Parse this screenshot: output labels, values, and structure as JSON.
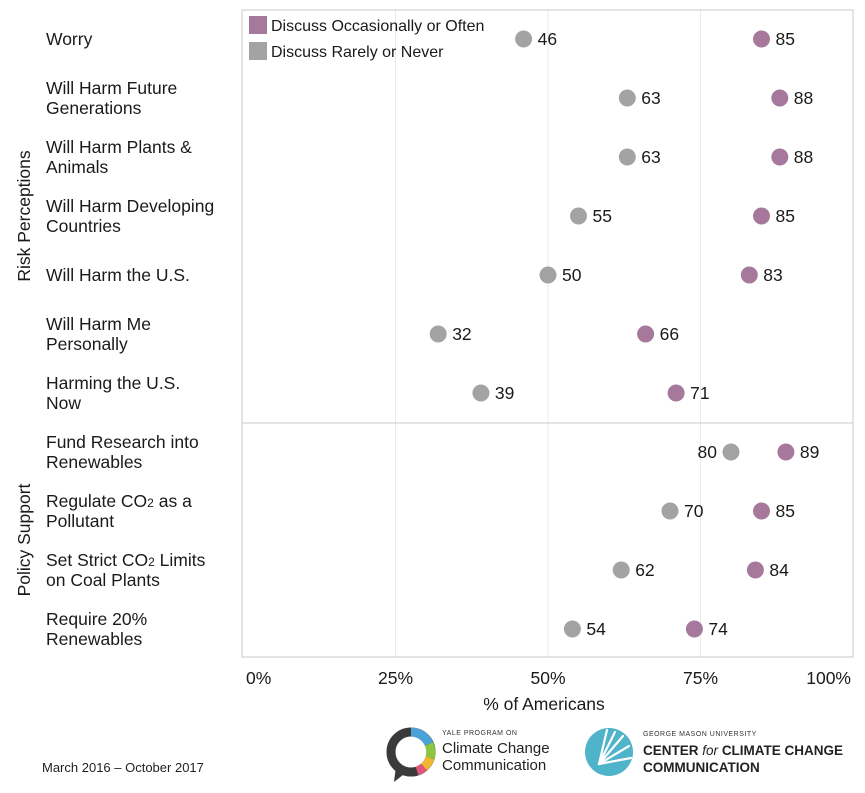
{
  "chart_data": {
    "type": "dot",
    "xlabel": "% of Americans",
    "xlim": [
      0,
      100
    ],
    "x_ticks": [
      "0%",
      "25%",
      "50%",
      "75%",
      "100%"
    ],
    "x_tick_values": [
      0,
      25,
      50,
      75,
      100
    ],
    "grid": true,
    "legend_position": "top-left",
    "colors": {
      "occasionally": "#a6789c",
      "rarely": "#a3a3a3"
    },
    "series": [
      {
        "name": "Discuss Occasionally or Often",
        "key": "occasionally"
      },
      {
        "name": "Discuss Rarely or Never",
        "key": "rarely"
      }
    ],
    "groups": [
      {
        "name": "Risk Perceptions",
        "rows": [
          {
            "lines": [
              "Worry"
            ],
            "occasionally": 85,
            "rarely": 46
          },
          {
            "lines": [
              "Will Harm Future",
              "Generations"
            ],
            "occasionally": 88,
            "rarely": 63
          },
          {
            "lines": [
              "Will Harm Plants &",
              "Animals"
            ],
            "occasionally": 88,
            "rarely": 63
          },
          {
            "lines": [
              "Will Harm Developing",
              "Countries"
            ],
            "occasionally": 85,
            "rarely": 55
          },
          {
            "lines": [
              "Will Harm the U.S."
            ],
            "occasionally": 83,
            "rarely": 50
          },
          {
            "lines": [
              "Will Harm Me",
              "Personally"
            ],
            "occasionally": 66,
            "rarely": 32
          },
          {
            "lines": [
              "Harming the U.S.",
              "Now"
            ],
            "occasionally": 71,
            "rarely": 39
          }
        ]
      },
      {
        "name": "Policy Support",
        "rows": [
          {
            "lines": [
              "Fund Research into",
              "Renewables"
            ],
            "occasionally": 89,
            "rarely": 80
          },
          {
            "lines": [
              "Regulate CO2 as a",
              "Pollutant"
            ],
            "occasionally": 85,
            "rarely": 70
          },
          {
            "lines": [
              "Set Strict CO2 Limits",
              "on Coal Plants"
            ],
            "occasionally": 84,
            "rarely": 62
          },
          {
            "lines": [
              "Require 20%",
              "Renewables"
            ],
            "occasionally": 74,
            "rarely": 54
          }
        ]
      }
    ]
  },
  "footer": {
    "date_range": "March 2016 – October 2017",
    "logo_yale_small": "YALE PROGRAM ON",
    "logo_yale_line1": "Climate Change",
    "logo_yale_line2": "Communication",
    "logo_gmu_small": "GEORGE MASON UNIVERSITY",
    "logo_gmu_line1_a": "CENTER",
    "logo_gmu_line1_b": "for",
    "logo_gmu_line1_c": "CLIMATE CHANGE",
    "logo_gmu_line2": "COMMUNICATION"
  }
}
